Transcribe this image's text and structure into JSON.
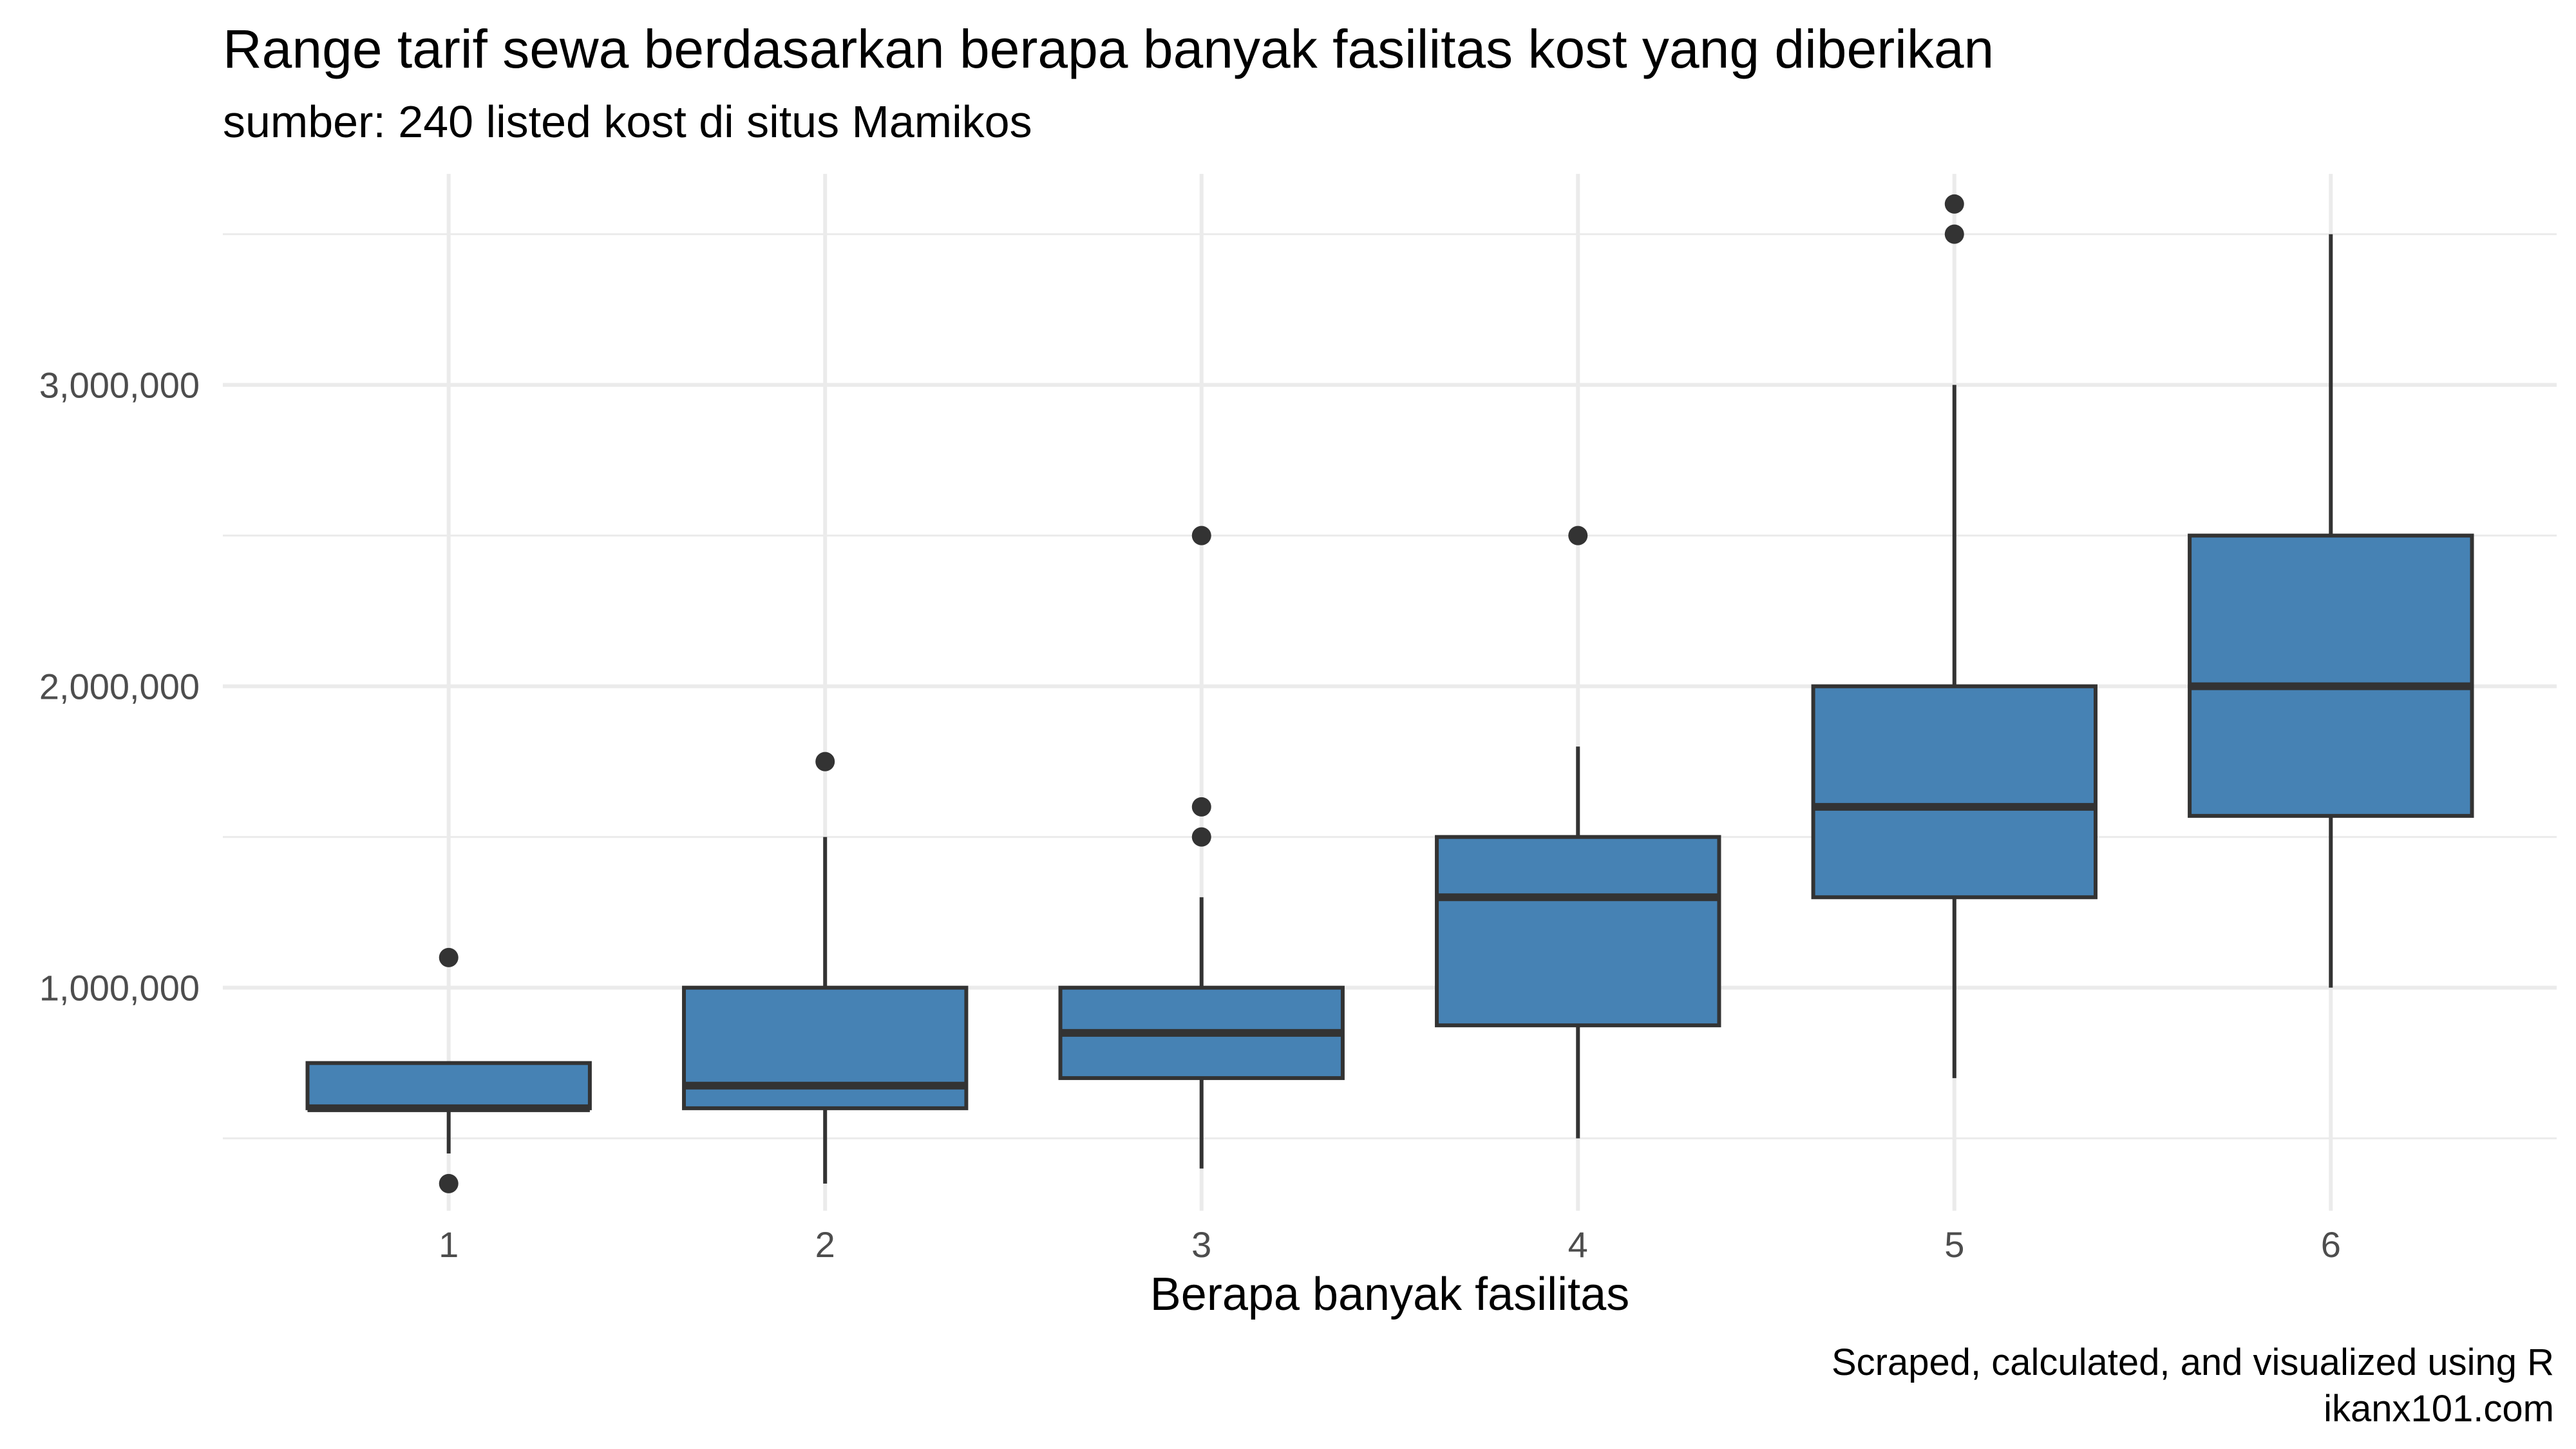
{
  "chart_data": {
    "type": "boxplot",
    "title": "Range tarif sewa berdasarkan berapa banyak fasilitas kost yang diberikan",
    "subtitle": "sumber: 240 listed kost di situs Mamikos",
    "xlabel": "Berapa banyak fasilitas",
    "ylabel": "",
    "caption_lines": [
      "Scraped, calculated, and visualized using R",
      "ikanx101.com"
    ],
    "ylim": [
      260000,
      3700000
    ],
    "y_major_ticks": [
      1000000,
      2000000,
      3000000
    ],
    "y_tick_labels": [
      "1,000,000",
      "2,000,000",
      "3,000,000"
    ],
    "y_minor_ticks": [
      500000,
      1500000,
      2500000,
      3500000
    ],
    "grid": true,
    "box_color": "#4682B4",
    "line_color": "#333333",
    "categories": [
      "1",
      "2",
      "3",
      "4",
      "5",
      "6"
    ],
    "boxes": [
      {
        "category": "1",
        "whisker_low": 450000,
        "q1": 600000,
        "median": 600000,
        "q3": 750000,
        "whisker_high": 750000,
        "outliers": [
          1100000,
          350000
        ]
      },
      {
        "category": "2",
        "whisker_low": 350000,
        "q1": 600000,
        "median": 675000,
        "q3": 1000000,
        "whisker_high": 1500000,
        "outliers": [
          1750000
        ]
      },
      {
        "category": "3",
        "whisker_low": 400000,
        "q1": 700000,
        "median": 850000,
        "q3": 1000000,
        "whisker_high": 1300000,
        "outliers": [
          2500000,
          1600000,
          1500000
        ]
      },
      {
        "category": "4",
        "whisker_low": 500000,
        "q1": 875000,
        "median": 1300000,
        "q3": 1500000,
        "whisker_high": 1800000,
        "outliers": [
          2500000
        ]
      },
      {
        "category": "5",
        "whisker_low": 700000,
        "q1": 1300000,
        "median": 1600000,
        "q3": 2000000,
        "whisker_high": 3000000,
        "outliers": [
          3600000,
          3500000
        ]
      },
      {
        "category": "6",
        "whisker_low": 1000000,
        "q1": 1570000,
        "median": 2000000,
        "q3": 2500000,
        "whisker_high": 3500000,
        "outliers": []
      }
    ]
  }
}
